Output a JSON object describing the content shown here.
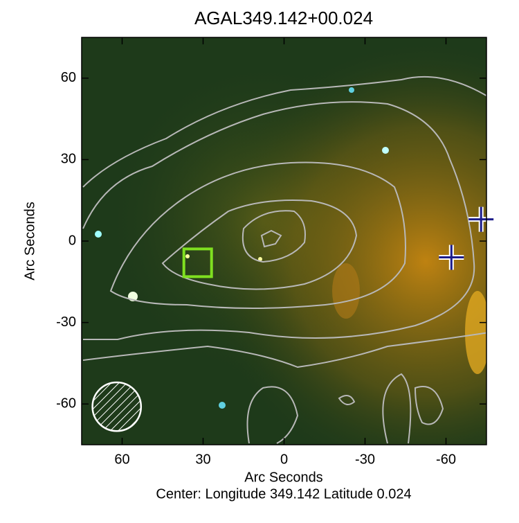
{
  "chart_data": {
    "type": "image",
    "title": "AGAL349.142+00.024",
    "xlabel": "Arc Seconds",
    "ylabel": "Arc Seconds",
    "subtitle": "Center:  Longitude 349.142 Latitude 0.024",
    "xlim": [
      75,
      -75
    ],
    "ylim": [
      -75,
      75
    ],
    "xticks": [
      60,
      30,
      0,
      -30,
      -60
    ],
    "yticks": [
      -60,
      -30,
      0,
      30,
      60
    ],
    "crosses": {
      "color": "#1c1c8a",
      "x": [
        -73,
        -62
      ],
      "y": [
        8,
        -6
      ]
    },
    "square": {
      "color": "#7fe020",
      "x": [
        32
      ],
      "y": [
        -8
      ]
    },
    "beam": {
      "x": 62,
      "y": -61,
      "radius": 9
    }
  }
}
